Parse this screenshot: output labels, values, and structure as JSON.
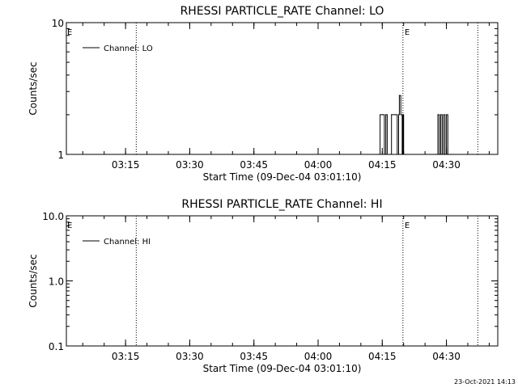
{
  "footer": {
    "timestamp": "23-Oct-2021 14:13"
  },
  "chart_data": [
    {
      "type": "line",
      "title": "RHESSI PARTICLE_RATE Channel: LO",
      "xlabel": "Start Time (09-Dec-04 03:01:10)",
      "ylabel": "Counts/sec",
      "yscale": "log",
      "ylim": [
        1,
        10
      ],
      "yticks": [
        1,
        10
      ],
      "ytick_labels": [
        "1",
        "10"
      ],
      "xlim": [
        "03:01:10",
        "04:42:00"
      ],
      "xticks": [
        "03:15",
        "03:30",
        "03:45",
        "04:00",
        "04:15",
        "04:30"
      ],
      "grid": false,
      "legend_position": "top-left",
      "series": [
        {
          "name": "Channel: LO",
          "x": [
            "04:14:10",
            "04:14:30",
            "04:15:10",
            "04:15:30",
            "04:15:50",
            "04:16:10",
            "04:16:50",
            "04:17:10",
            "04:18:00",
            "04:18:30",
            "04:18:50",
            "04:19:00",
            "04:19:20",
            "04:19:40",
            "04:19:50",
            "04:20:00",
            "04:20:30",
            "04:27:30",
            "04:28:00",
            "04:28:20",
            "04:28:40",
            "04:29:00",
            "04:29:20",
            "04:29:40",
            "04:30:00",
            "04:30:20",
            "04:31:00"
          ],
          "values": [
            1,
            2,
            2,
            1,
            2,
            1,
            1,
            2,
            2,
            1,
            2,
            2.8,
            2,
            1,
            2,
            1,
            1,
            1,
            2,
            1,
            2,
            1,
            2,
            1,
            2,
            1,
            1
          ]
        }
      ],
      "markers": [
        {
          "time": "03:17:30",
          "label": ""
        },
        {
          "time": "04:19:50",
          "label": "E"
        },
        {
          "time": "04:37:20",
          "label": ""
        }
      ],
      "edge_labels": [
        "E"
      ]
    },
    {
      "type": "line",
      "title": "RHESSI PARTICLE_RATE Channel: HI",
      "xlabel": "Start Time (09-Dec-04 03:01:10)",
      "ylabel": "Counts/sec",
      "yscale": "log",
      "ylim": [
        0.1,
        10
      ],
      "yticks": [
        0.1,
        1,
        10
      ],
      "ytick_labels": [
        "0.1",
        "1.0",
        "10.0"
      ],
      "xlim": [
        "03:01:10",
        "04:42:00"
      ],
      "xticks": [
        "03:15",
        "03:30",
        "03:45",
        "04:00",
        "04:15",
        "04:30"
      ],
      "grid": false,
      "legend_position": "top-left",
      "series": [
        {
          "name": "Channel: HI",
          "x": [],
          "values": []
        }
      ],
      "markers": [
        {
          "time": "03:17:30",
          "label": ""
        },
        {
          "time": "04:19:50",
          "label": "E"
        },
        {
          "time": "04:37:20",
          "label": ""
        }
      ],
      "edge_labels": [
        "E"
      ]
    }
  ]
}
